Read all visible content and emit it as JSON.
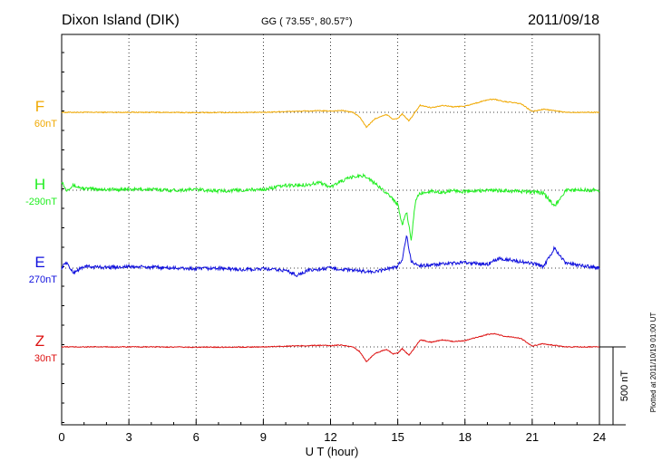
{
  "header": {
    "station": "Dixon Island (DIK)",
    "coords": "GG ( 73.55°,  80.57°)",
    "date": "2011/09/18"
  },
  "plotted_note": "Plotted at 2011/10/19 01:00 UT",
  "chart_data": {
    "type": "line",
    "xlabel": "U T (hour)",
    "xlim": [
      0,
      24
    ],
    "x_ticks": [
      "0",
      "3",
      "6",
      "9",
      "12",
      "15",
      "18",
      "21",
      "24"
    ],
    "grid": true,
    "scale_bar": "500 nT",
    "series": [
      {
        "name": "F",
        "baseline": "60nT",
        "color": "#f0a800",
        "x": [
          0,
          2,
          4,
          6,
          8,
          9,
          10,
          11,
          11.5,
          12,
          12.5,
          13,
          13.3,
          13.6,
          14,
          14.5,
          14.8,
          15,
          15.2,
          15.5,
          15.8,
          16,
          16.5,
          17,
          17.5,
          18,
          18.5,
          19,
          19.3,
          19.7,
          20,
          20.5,
          21,
          21.5,
          22,
          22.5,
          23,
          24
        ],
        "values": [
          0,
          0,
          0,
          -2,
          -1,
          0,
          5,
          8,
          10,
          8,
          12,
          0,
          -30,
          -95,
          -40,
          -15,
          -45,
          -40,
          -10,
          -55,
          5,
          45,
          30,
          45,
          35,
          40,
          60,
          80,
          85,
          70,
          65,
          55,
          5,
          20,
          10,
          0,
          0,
          0
        ]
      },
      {
        "name": "H",
        "baseline": "-290nT",
        "color": "#22ee22",
        "x": [
          0,
          0.2,
          0.5,
          1,
          2,
          3,
          4,
          5,
          6,
          7,
          8,
          9,
          10,
          11,
          11.5,
          12,
          12.5,
          13,
          13.5,
          14,
          14.5,
          15,
          15.2,
          15.4,
          15.6,
          15.8,
          16,
          16.5,
          17,
          17.5,
          18,
          19,
          20,
          21,
          21.5,
          22,
          22.5,
          23,
          24
        ],
        "values": [
          60,
          0,
          30,
          10,
          5,
          5,
          5,
          0,
          5,
          -5,
          0,
          5,
          30,
          35,
          50,
          20,
          60,
          85,
          95,
          40,
          -15,
          -90,
          -220,
          -145,
          -320,
          -60,
          -20,
          -5,
          -15,
          0,
          -10,
          0,
          -5,
          -10,
          -20,
          -100,
          0,
          0,
          0
        ]
      },
      {
        "name": "E",
        "baseline": "270nT",
        "color": "#1010dd",
        "x": [
          0,
          0.2,
          0.5,
          1,
          2,
          3,
          4,
          5,
          6,
          7,
          8,
          9,
          10,
          10.5,
          11,
          12,
          13,
          14,
          14.5,
          15,
          15.2,
          15.4,
          15.6,
          16,
          17,
          18,
          19,
          19.5,
          20,
          20.5,
          21,
          21.5,
          22,
          22.5,
          23,
          23.5,
          24
        ],
        "values": [
          0,
          40,
          -30,
          10,
          5,
          10,
          5,
          0,
          -5,
          0,
          -10,
          -5,
          -15,
          -45,
          -15,
          0,
          -15,
          -25,
          -5,
          10,
          60,
          210,
          40,
          15,
          25,
          35,
          25,
          60,
          55,
          40,
          30,
          10,
          130,
          30,
          20,
          10,
          0
        ]
      },
      {
        "name": "Z",
        "baseline": "30nT",
        "color": "#dd1111",
        "x": [
          0,
          2,
          4,
          6,
          8,
          9,
          10,
          11,
          11.5,
          12,
          12.5,
          13,
          13.3,
          13.6,
          14,
          14.5,
          14.8,
          15,
          15.2,
          15.5,
          15.8,
          16,
          16.5,
          17,
          17.5,
          18,
          18.5,
          19,
          19.3,
          19.7,
          20,
          20.5,
          21,
          21.5,
          22,
          22.5,
          23,
          24
        ],
        "values": [
          0,
          0,
          0,
          -2,
          -1,
          0,
          5,
          8,
          10,
          8,
          12,
          0,
          -30,
          -95,
          -40,
          -15,
          -45,
          -40,
          -10,
          -55,
          5,
          45,
          30,
          45,
          35,
          40,
          60,
          80,
          85,
          70,
          65,
          55,
          5,
          20,
          10,
          0,
          0,
          0
        ]
      }
    ]
  }
}
